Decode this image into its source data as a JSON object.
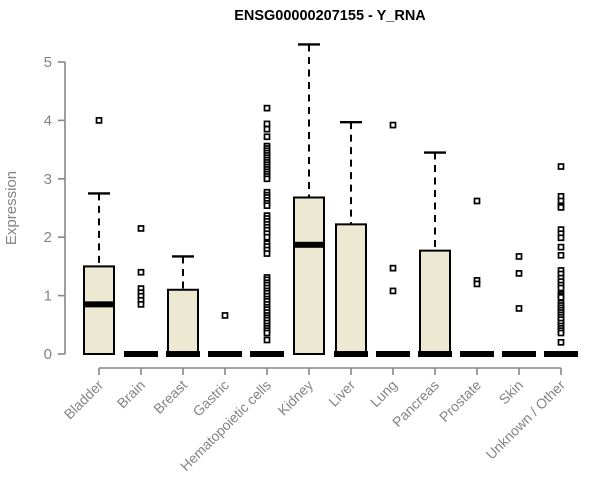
{
  "chart_data": {
    "type": "boxplot",
    "title": "ENSG00000207155 - Y_RNA",
    "ylabel": "Expression",
    "xlabel": "",
    "ylim": [
      0,
      5.45
    ],
    "yticks": [
      0,
      1,
      2,
      3,
      4,
      5
    ],
    "grid": false,
    "legend": "none",
    "categories": [
      "Bladder",
      "Brain",
      "Breast",
      "Gastric",
      "Hematopoietic cells",
      "Kidney",
      "Liver",
      "Lung",
      "Pancreas",
      "Prostate",
      "Skin",
      "Unknown / Other"
    ],
    "series": [
      {
        "name": "Bladder",
        "q1": 0,
        "median": 0.85,
        "q3": 1.5,
        "whisker_low": 0,
        "whisker_high": 2.75,
        "outliers": [
          4.0
        ]
      },
      {
        "name": "Brain",
        "q1": 0,
        "median": 0,
        "q3": 0,
        "whisker_low": 0,
        "whisker_high": 0,
        "outliers": [
          2.15,
          1.4,
          1.12,
          1.05,
          0.99,
          0.92,
          0.85
        ]
      },
      {
        "name": "Breast",
        "q1": 0,
        "median": 0,
        "q3": 1.1,
        "whisker_low": 0,
        "whisker_high": 1.67,
        "outliers": []
      },
      {
        "name": "Gastric",
        "q1": 0,
        "median": 0,
        "q3": 0,
        "whisker_low": 0,
        "whisker_high": 0,
        "outliers": [
          0.66
        ]
      },
      {
        "name": "Hematopoietic cells",
        "q1": 0,
        "median": 0,
        "q3": 0,
        "whisker_low": 0,
        "whisker_high": 0,
        "outliers": [
          4.21,
          3.94,
          3.85,
          3.72,
          3.56,
          3.52,
          3.48,
          3.44,
          3.4,
          3.36,
          3.32,
          3.28,
          3.24,
          3.2,
          3.16,
          3.12,
          3.08,
          3.04,
          3.0,
          2.77,
          2.72,
          2.68,
          2.63,
          2.58,
          2.54,
          2.37,
          2.32,
          2.27,
          2.22,
          2.17,
          2.12,
          2.06,
          2.0,
          1.89,
          1.84,
          1.78,
          1.72,
          1.31,
          1.27,
          1.22,
          1.18,
          1.13,
          1.08,
          1.04,
          0.99,
          0.94,
          0.9,
          0.85,
          0.8,
          0.76,
          0.71,
          0.66,
          0.62,
          0.58,
          0.53,
          0.48,
          0.44,
          0.4,
          0.36,
          0.24
        ]
      },
      {
        "name": "Kidney",
        "q1": 0,
        "median": 1.87,
        "q3": 2.68,
        "whisker_low": 0,
        "whisker_high": 5.3,
        "outliers": []
      },
      {
        "name": "Liver",
        "q1": 0,
        "median": 0,
        "q3": 2.22,
        "whisker_low": 0,
        "whisker_high": 3.97,
        "outliers": []
      },
      {
        "name": "Lung",
        "q1": 0,
        "median": 0,
        "q3": 0,
        "whisker_low": 0,
        "whisker_high": 0,
        "outliers": [
          3.92,
          1.47,
          1.08
        ]
      },
      {
        "name": "Pancreas",
        "q1": 0,
        "median": 0,
        "q3": 1.77,
        "whisker_low": 0,
        "whisker_high": 3.45,
        "outliers": []
      },
      {
        "name": "Prostate",
        "q1": 0,
        "median": 0,
        "q3": 0,
        "whisker_low": 0,
        "whisker_high": 0,
        "outliers": [
          2.62,
          1.26,
          1.2
        ]
      },
      {
        "name": "Skin",
        "q1": 0,
        "median": 0,
        "q3": 0,
        "whisker_low": 0,
        "whisker_high": 0,
        "outliers": [
          1.67,
          1.38,
          0.78
        ]
      },
      {
        "name": "Unknown / Other",
        "q1": 0,
        "median": 0,
        "q3": 0,
        "whisker_low": 0,
        "whisker_high": 0,
        "outliers": [
          3.21,
          2.7,
          2.62,
          2.54,
          2.51,
          2.13,
          2.06,
          1.99,
          1.83,
          1.69,
          1.43,
          1.37,
          1.3,
          1.24,
          1.18,
          1.13,
          1.03,
          1.0,
          0.97,
          0.87,
          0.83,
          0.79,
          0.75,
          0.71,
          0.67,
          0.63,
          0.59,
          0.53,
          0.48,
          0.44,
          0.4,
          0.36,
          0.2
        ]
      }
    ],
    "colors": {
      "box_fill": "#EDE8D1",
      "box_border": "#000000",
      "median": "#000000",
      "whisker": "#000000",
      "outlier": "#000000",
      "axis": "#878787",
      "label": "#848484",
      "title": "#000000",
      "background": "#FFFFFF"
    }
  }
}
